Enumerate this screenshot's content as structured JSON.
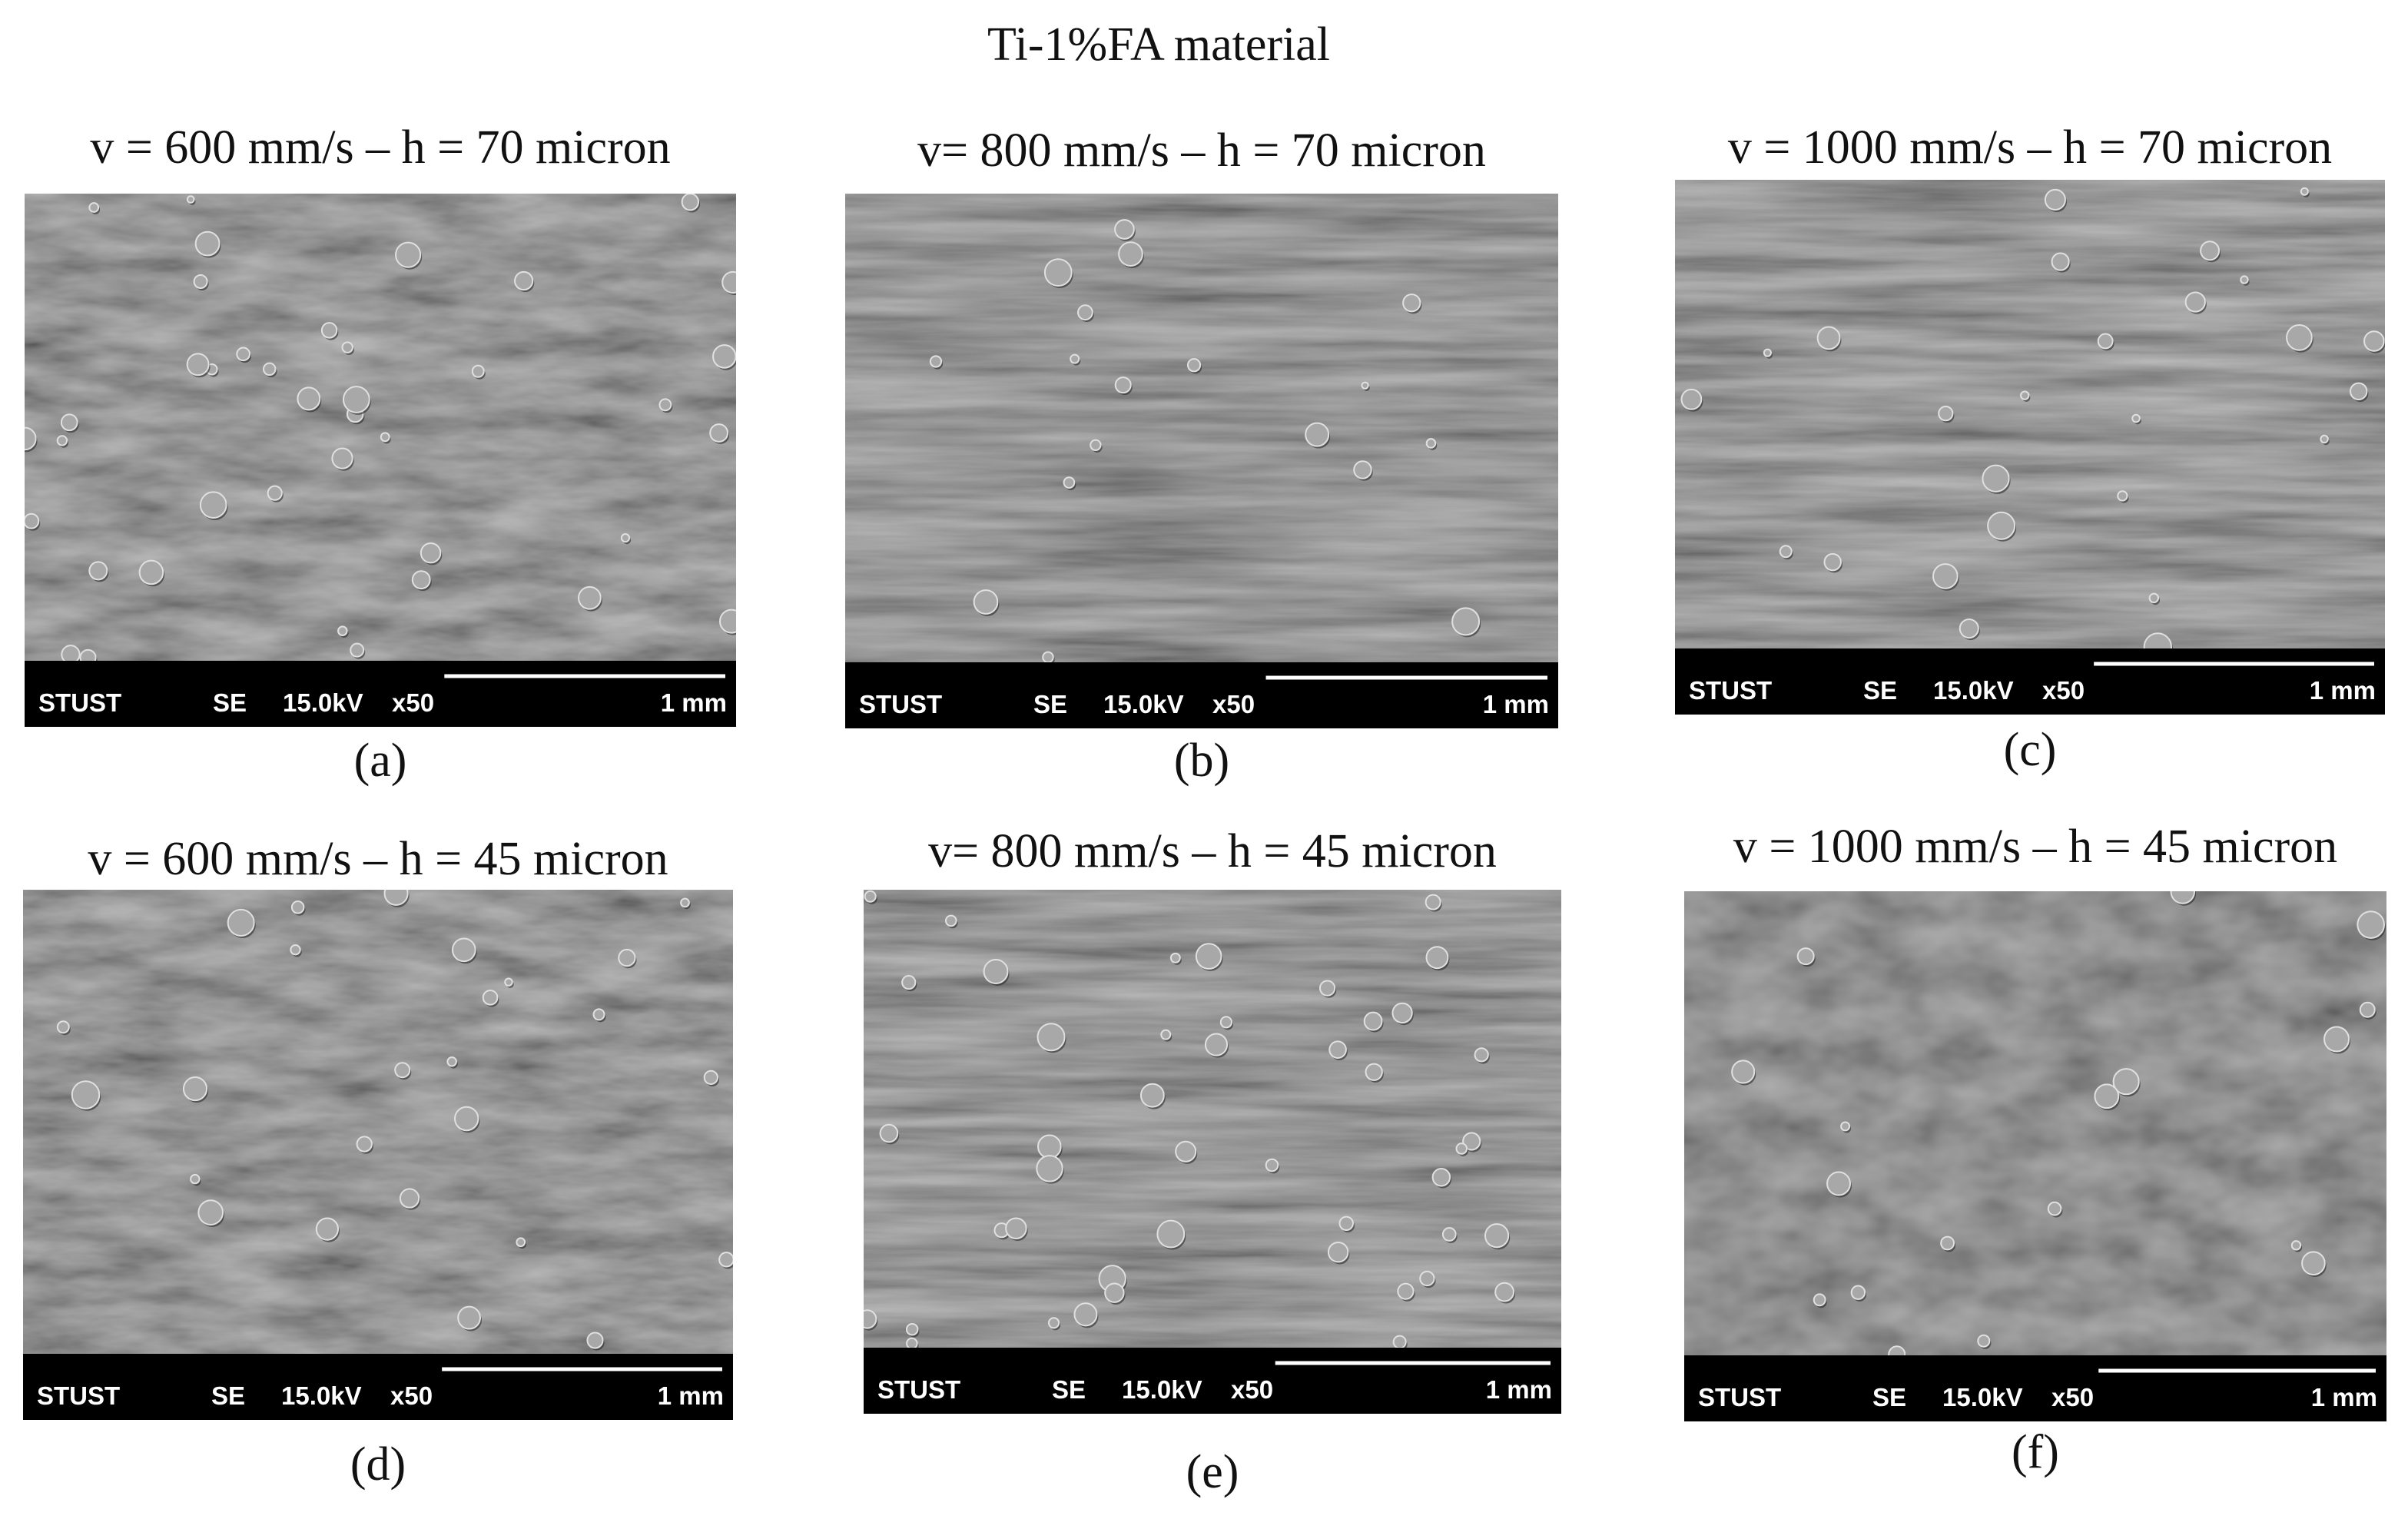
{
  "title": "Ti-1%FA material",
  "panels": [
    {
      "heading": "v = 600 mm/s – h = 70 micron",
      "caption": "(a)",
      "info": {
        "label": "STUST",
        "mode": "SE",
        "voltage": "15.0kV",
        "magnification": "x50",
        "scale": "1 mm"
      }
    },
    {
      "heading": "v= 800 mm/s – h = 70 micron",
      "caption": "(b)",
      "info": {
        "label": "STUST",
        "mode": "SE",
        "voltage": "15.0kV",
        "magnification": "x50",
        "scale": "1 mm"
      }
    },
    {
      "heading": "v = 1000 mm/s – h = 70 micron",
      "caption": "(c)",
      "info": {
        "label": "STUST",
        "mode": "SE",
        "voltage": "15.0kV",
        "magnification": "x50",
        "scale": "1 mm"
      }
    },
    {
      "heading": "v = 600 mm/s – h = 45 micron",
      "caption": "(d)",
      "info": {
        "label": "STUST",
        "mode": "SE",
        "voltage": "15.0kV",
        "magnification": "x50",
        "scale": "1 mm"
      }
    },
    {
      "heading": "v= 800 mm/s – h = 45 micron",
      "caption": "(e)",
      "info": {
        "label": "STUST",
        "mode": "SE",
        "voltage": "15.0kV",
        "magnification": "x50",
        "scale": "1 mm"
      }
    },
    {
      "heading": "v = 1000 mm/s – h = 45 micron",
      "caption": "(f)",
      "info": {
        "label": "STUST",
        "mode": "SE",
        "voltage": "15.0kV",
        "magnification": "x50",
        "scale": "1 mm"
      }
    }
  ]
}
